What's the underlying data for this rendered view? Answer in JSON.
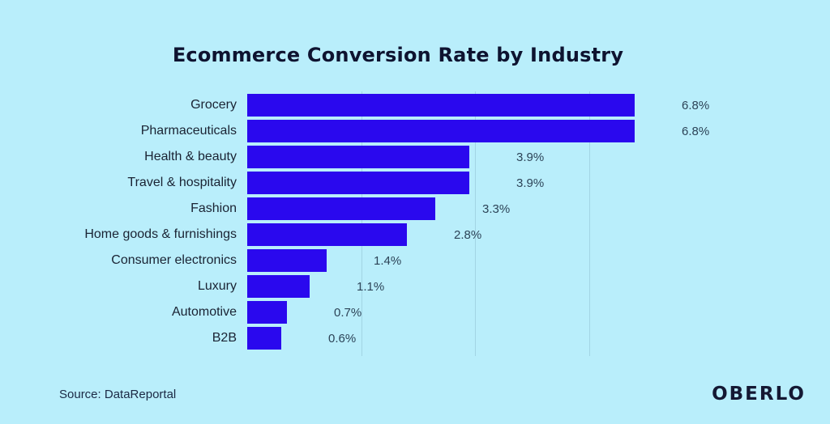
{
  "title": "Ecommerce Conversion Rate by Industry",
  "source": "Source: DataReportal",
  "brand": "OBERLO",
  "colors": {
    "background": "#b9eefb",
    "bar": "#2a08ee",
    "title": "#0e1330",
    "category_label": "#1a2333",
    "value_label": "#2c4357",
    "gridline": "#a2d5e4",
    "source_text": "#1b2944",
    "brand_text": "#141833"
  },
  "chart_data": {
    "type": "bar",
    "orientation": "horizontal",
    "title": "Ecommerce Conversion Rate by Industry",
    "xlabel": "",
    "ylabel": "",
    "unit": "%",
    "categories": [
      "Grocery",
      "Pharmaceuticals",
      "Health & beauty",
      "Travel & hospitality",
      "Fashion",
      "Home goods & furnishings",
      "Consumer electronics",
      "Luxury",
      "Automotive",
      "B2B"
    ],
    "values": [
      6.8,
      6.8,
      3.9,
      3.9,
      3.3,
      2.8,
      1.4,
      1.1,
      0.7,
      0.6
    ],
    "value_labels": [
      "6.8%",
      "6.8%",
      "3.9%",
      "3.9%",
      "3.3%",
      "2.8%",
      "1.4%",
      "1.1%",
      "0.7%",
      "0.6%"
    ],
    "xlim": [
      0,
      7
    ],
    "gridlines_pct": [
      2,
      4,
      6
    ],
    "grid": "vertical-faint",
    "legend": "none"
  }
}
